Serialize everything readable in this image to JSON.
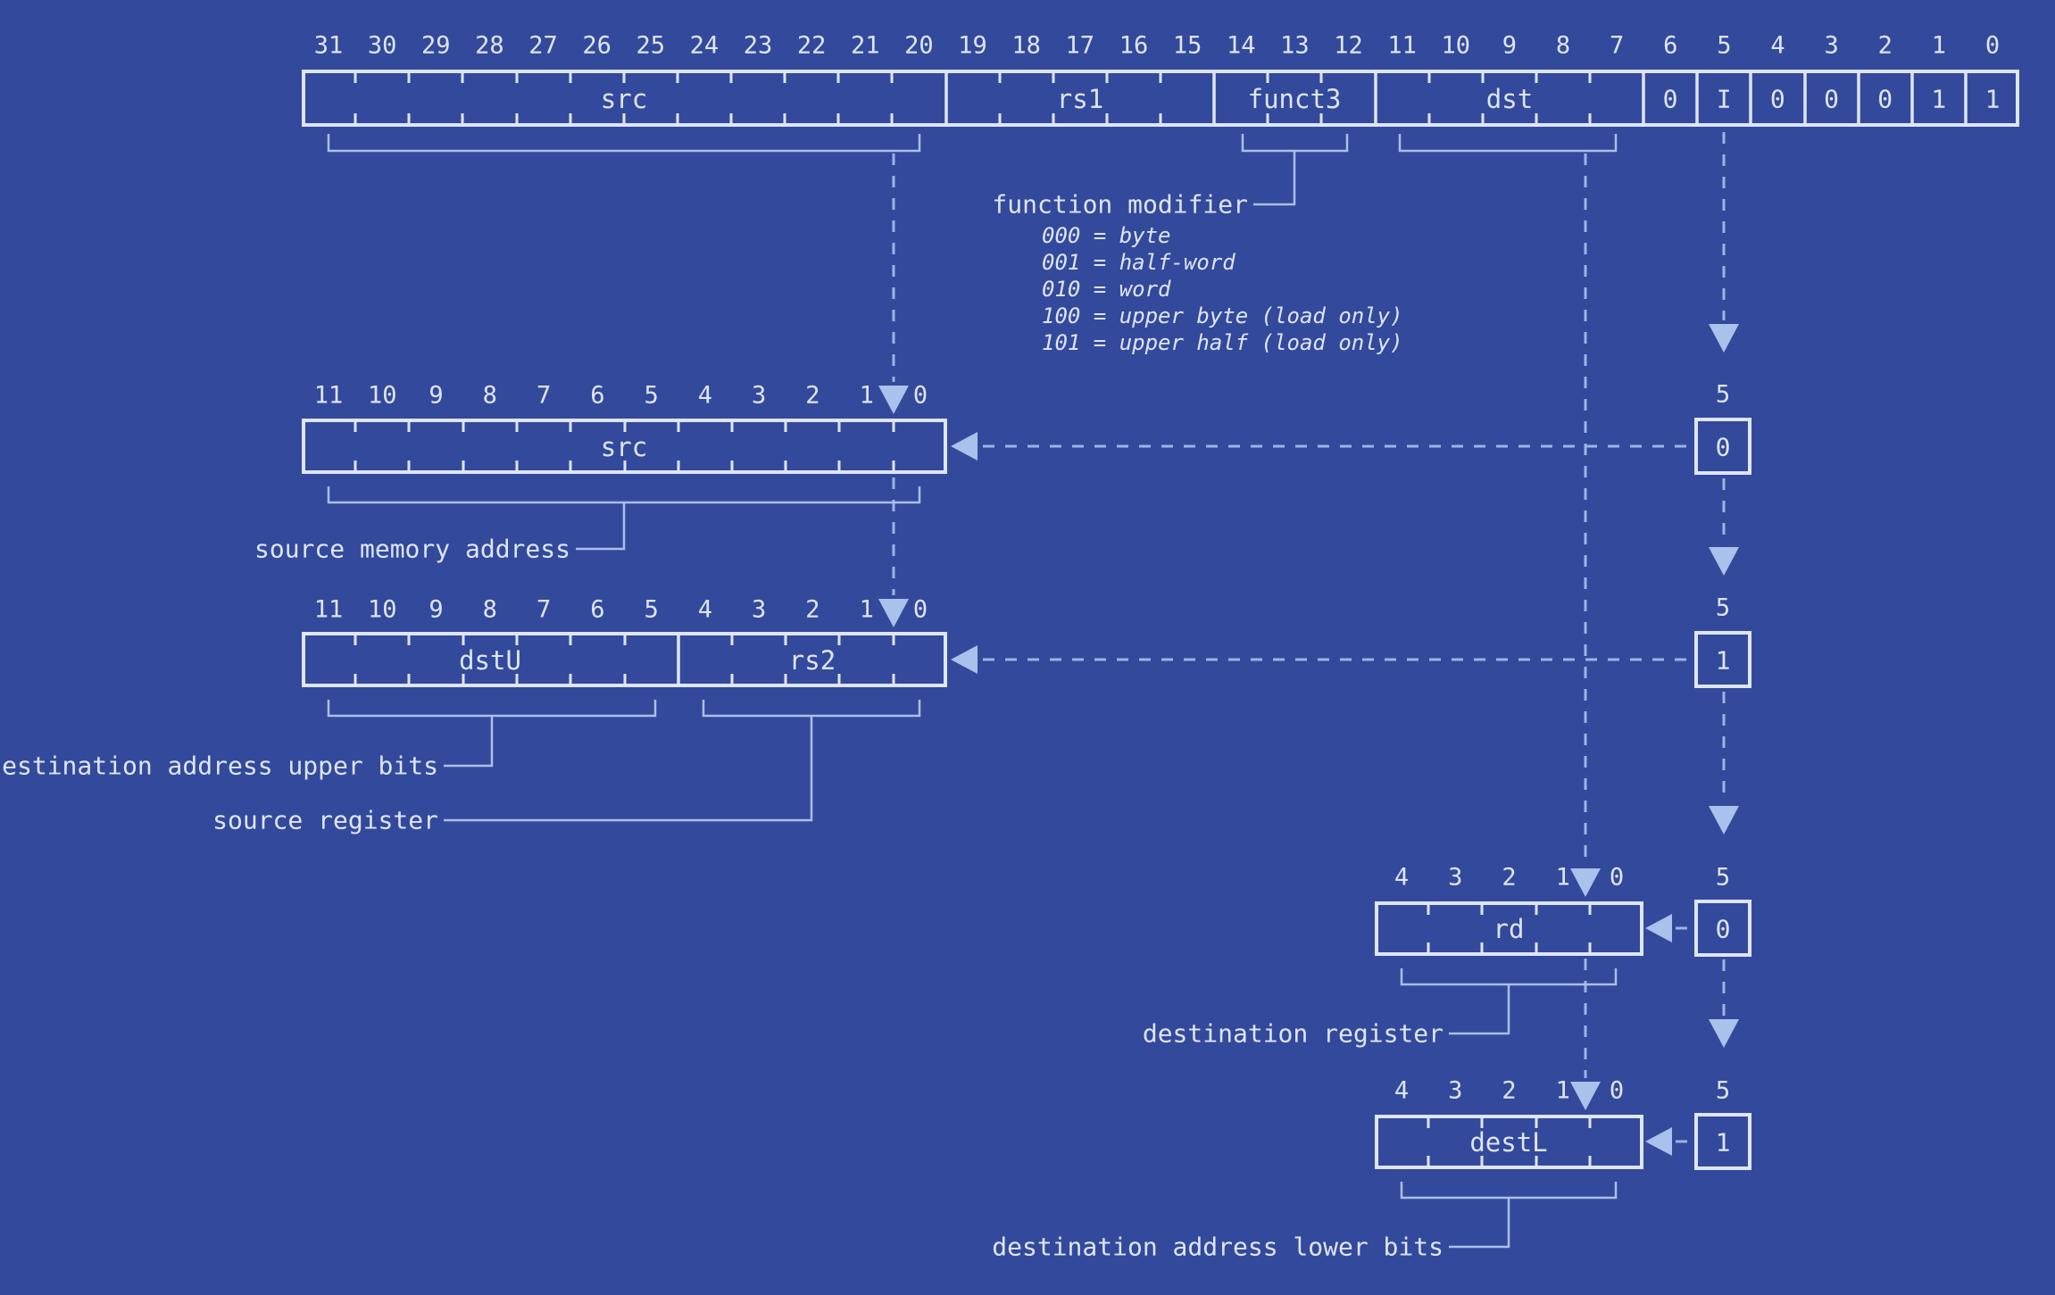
{
  "colors": {
    "background": "#33499C",
    "structure_line": "#DEE5F6",
    "bracket_line": "#ABC0EA",
    "dashed_line": "#9DB4E2",
    "arrowhead": "#A9C2EC"
  },
  "instruction": {
    "bit_labels": [
      "31",
      "30",
      "29",
      "28",
      "27",
      "26",
      "25",
      "24",
      "23",
      "22",
      "21",
      "20",
      "19",
      "18",
      "17",
      "16",
      "15",
      "14",
      "13",
      "12",
      "11",
      "10",
      "9",
      "8",
      "7",
      "6",
      "5",
      "4",
      "3",
      "2",
      "1",
      "0"
    ],
    "field_src": "src",
    "field_rs1": "rs1",
    "field_funct3": "funct3",
    "field_dst": "dst",
    "fixed_bits": [
      "0",
      "I",
      "0",
      "0",
      "0",
      "1",
      "1"
    ]
  },
  "function_modifier": {
    "label": "function modifier",
    "options": [
      "000 = byte",
      "001 = half-word",
      "010 = word",
      "100 = upper byte (load only)",
      "101 = upper half (load only)"
    ]
  },
  "src_row": {
    "bit_labels": [
      "11",
      "10",
      "9",
      "8",
      "7",
      "6",
      "5",
      "4",
      "3",
      "2",
      "1",
      "0"
    ],
    "field": "src",
    "caption": "source memory address",
    "width_label": "5",
    "select_bit": "0"
  },
  "dstu_row": {
    "bit_labels": [
      "11",
      "10",
      "9",
      "8",
      "7",
      "6",
      "5",
      "4",
      "3",
      "2",
      "1",
      "0"
    ],
    "field_dstU": "dstU",
    "field_rs2": "rs2",
    "caption_dstU": "destination address upper bits",
    "caption_rs2": "source register",
    "width_label": "5",
    "select_bit": "1"
  },
  "rd_row": {
    "bit_labels": [
      "4",
      "3",
      "2",
      "1",
      "0"
    ],
    "field": "rd",
    "caption": "destination register",
    "width_label": "5",
    "select_bit": "0"
  },
  "destl_row": {
    "bit_labels": [
      "4",
      "3",
      "2",
      "1",
      "0"
    ],
    "field": "destL",
    "caption": "destination address lower bits",
    "width_label": "5",
    "select_bit": "1"
  }
}
